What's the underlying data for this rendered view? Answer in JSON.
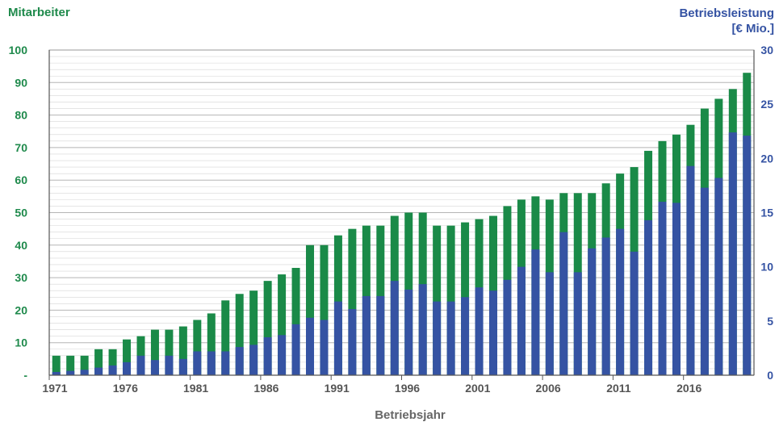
{
  "chart_data": {
    "type": "bar",
    "y_left_label": "Mitarbeiter",
    "y_right_label_line1": "Betriebsleistung",
    "y_right_label_line2": "[€ Mio.]",
    "xlabel": "Betriebsjahr",
    "ylim_left": [
      0,
      100
    ],
    "ylim_right": [
      0,
      30
    ],
    "y_left_ticks": [
      "-",
      "10",
      "20",
      "30",
      "40",
      "50",
      "60",
      "70",
      "80",
      "90",
      "100"
    ],
    "y_right_ticks": [
      "0",
      "5",
      "10",
      "15",
      "20",
      "25",
      "30"
    ],
    "x_ticks": [
      "1971",
      "1976",
      "1981",
      "1986",
      "1991",
      "1996",
      "2001",
      "2006",
      "2011",
      "2016"
    ],
    "years": [
      1971,
      1972,
      1973,
      1974,
      1975,
      1976,
      1977,
      1978,
      1979,
      1980,
      1981,
      1982,
      1983,
      1984,
      1985,
      1986,
      1987,
      1988,
      1989,
      1990,
      1991,
      1992,
      1993,
      1994,
      1995,
      1996,
      1997,
      1998,
      1999,
      2000,
      2001,
      2002,
      2003,
      2004,
      2005,
      2006,
      2007,
      2008,
      2009,
      2010,
      2011,
      2012,
      2013,
      2014,
      2015,
      2016,
      2017,
      2018,
      2019,
      2020
    ],
    "series": [
      {
        "name": "Mitarbeiter",
        "color": "#1a8a48",
        "axis": "left",
        "values": [
          6,
          6,
          6,
          8,
          8,
          11,
          12,
          14,
          14,
          15,
          17,
          19,
          23,
          25,
          26,
          29,
          31,
          33,
          40,
          40,
          43,
          45,
          46,
          46,
          49,
          50,
          50,
          46,
          46,
          47,
          48,
          49,
          52,
          54,
          55,
          54,
          56,
          56,
          56,
          59,
          62,
          64,
          69,
          72,
          74,
          77,
          82,
          85,
          88,
          93
        ]
      },
      {
        "name": "Betriebsleistung",
        "color": "#3553a3",
        "axis": "right",
        "values": [
          0.3,
          0.4,
          0.5,
          0.7,
          0.9,
          1.2,
          1.8,
          1.4,
          1.8,
          1.5,
          2.2,
          2.2,
          2.2,
          2.6,
          2.8,
          3.5,
          3.7,
          4.7,
          5.3,
          5.1,
          6.8,
          6.1,
          7.3,
          7.3,
          8.7,
          7.9,
          8.4,
          6.8,
          6.8,
          7.2,
          8.1,
          7.8,
          8.8,
          10.0,
          11.6,
          9.5,
          13.2,
          9.5,
          11.7,
          12.7,
          13.5,
          11.4,
          14.3,
          16.0,
          15.9,
          19.3,
          17.3,
          18.2,
          22.4,
          22.1
        ]
      }
    ],
    "grid": true
  }
}
